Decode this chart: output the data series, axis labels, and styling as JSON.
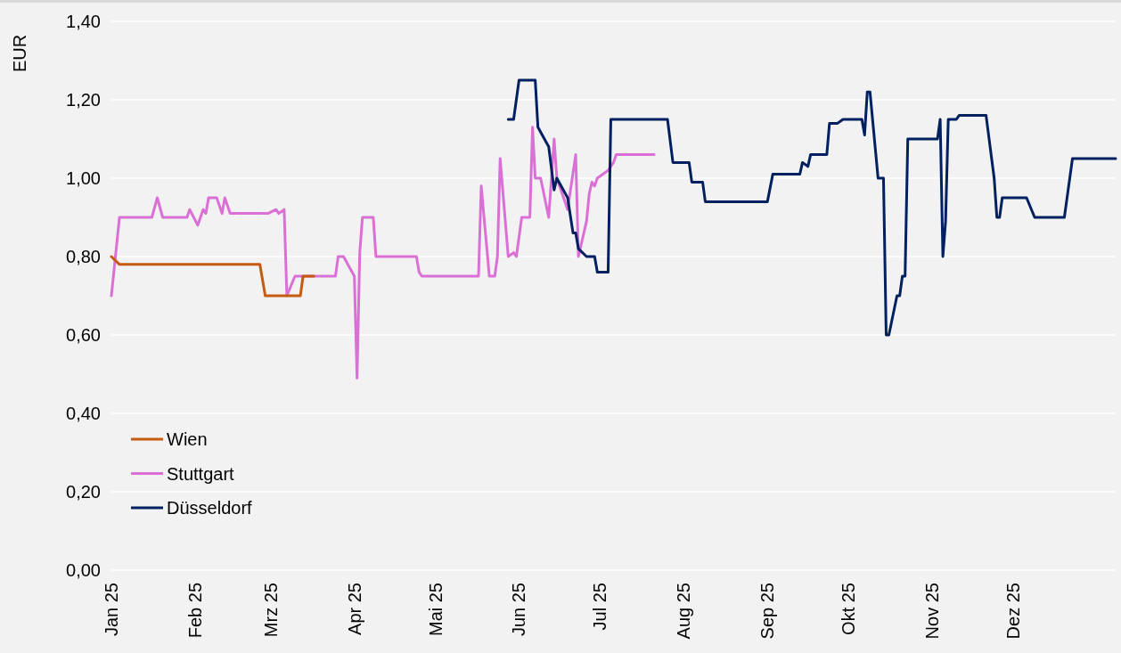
{
  "chart_data": {
    "type": "line",
    "ylabel": "EUR",
    "xlim": [
      "2025-01-01",
      "2026-01-08"
    ],
    "xticks": [
      {
        "value": "2025-01-01",
        "label": "Jan 25"
      },
      {
        "value": "2025-02-01",
        "label": "Feb 25"
      },
      {
        "value": "2025-03-01",
        "label": "Mrz 25"
      },
      {
        "value": "2025-04-01",
        "label": "Apr 25"
      },
      {
        "value": "2025-05-01",
        "label": "Mai 25"
      },
      {
        "value": "2025-06-01",
        "label": "Jun 25"
      },
      {
        "value": "2025-07-01",
        "label": "Jul 25"
      },
      {
        "value": "2025-08-01",
        "label": "Aug 25"
      },
      {
        "value": "2025-09-01",
        "label": "Sep 25"
      },
      {
        "value": "2025-10-01",
        "label": "Okt 25"
      },
      {
        "value": "2025-11-01",
        "label": "Nov 25"
      },
      {
        "value": "2025-12-01",
        "label": "Dez 25"
      }
    ],
    "ylim": [
      0,
      1.4
    ],
    "yticks": [
      {
        "value": 0,
        "label": "0,00"
      },
      {
        "value": 0.2,
        "label": "0,20"
      },
      {
        "value": 0.4,
        "label": "0,40"
      },
      {
        "value": 0.6,
        "label": "0,60"
      },
      {
        "value": 0.8,
        "label": "0,80"
      },
      {
        "value": 1.0,
        "label": "1,00"
      },
      {
        "value": 1.2,
        "label": "1,20"
      },
      {
        "value": 1.4,
        "label": "1,40"
      }
    ],
    "grid": "y",
    "legend": "bottom left",
    "marker": "none",
    "line_style": "solid",
    "series": [
      {
        "name": "Wien",
        "color": "#c55a11",
        "x": [
          "2025-01-01",
          "2025-01-04",
          "2025-02-25",
          "2025-02-27",
          "2025-03-12",
          "2025-03-13",
          "2025-03-17"
        ],
        "values": [
          0.8,
          0.78,
          0.78,
          0.7,
          0.7,
          0.75,
          0.75
        ]
      },
      {
        "name": "Stuttgart",
        "color": "#da70d6",
        "x": [
          "2025-01-01",
          "2025-01-04",
          "2025-01-16",
          "2025-01-18",
          "2025-01-20",
          "2025-01-29",
          "2025-01-30",
          "2025-02-02",
          "2025-02-04",
          "2025-02-05",
          "2025-02-06",
          "2025-02-09",
          "2025-02-11",
          "2025-02-12",
          "2025-02-14",
          "2025-02-28",
          "2025-03-03",
          "2025-03-04",
          "2025-03-06",
          "2025-03-07",
          "2025-03-10",
          "2025-03-25",
          "2025-03-26",
          "2025-03-28",
          "2025-04-01",
          "2025-04-02",
          "2025-04-03",
          "2025-04-04",
          "2025-04-08",
          "2025-04-09",
          "2025-04-24",
          "2025-04-25",
          "2025-04-26",
          "2025-05-17",
          "2025-05-18",
          "2025-05-21",
          "2025-05-23",
          "2025-05-24",
          "2025-05-25",
          "2025-05-28",
          "2025-05-30",
          "2025-05-31",
          "2025-06-02",
          "2025-06-05",
          "2025-06-06",
          "2025-06-07",
          "2025-06-09",
          "2025-06-12",
          "2025-06-14",
          "2025-06-15",
          "2025-06-19",
          "2025-06-22",
          "2025-06-23",
          "2025-06-26",
          "2025-06-27",
          "2025-06-28",
          "2025-06-29",
          "2025-06-30",
          "2025-07-04",
          "2025-07-06",
          "2025-07-07",
          "2025-07-21"
        ],
        "values": [
          0.7,
          0.9,
          0.9,
          0.95,
          0.9,
          0.9,
          0.92,
          0.88,
          0.92,
          0.91,
          0.95,
          0.95,
          0.91,
          0.95,
          0.91,
          0.91,
          0.92,
          0.91,
          0.92,
          0.7,
          0.75,
          0.75,
          0.8,
          0.8,
          0.75,
          0.49,
          0.81,
          0.9,
          0.9,
          0.8,
          0.8,
          0.76,
          0.75,
          0.75,
          0.98,
          0.75,
          0.75,
          0.8,
          1.05,
          0.8,
          0.81,
          0.8,
          0.9,
          0.9,
          1.13,
          1.0,
          1.0,
          0.9,
          1.1,
          1.0,
          0.92,
          1.06,
          0.8,
          0.89,
          0.96,
          0.99,
          0.98,
          1.0,
          1.02,
          1.04,
          1.06,
          1.06
        ]
      },
      {
        "name": "Düsseldorf",
        "color": "#002060",
        "x": [
          "2025-05-28",
          "2025-05-30",
          "2025-06-01",
          "2025-06-07",
          "2025-06-08",
          "2025-06-12",
          "2025-06-14",
          "2025-06-15",
          "2025-06-19",
          "2025-06-21",
          "2025-06-22",
          "2025-06-23",
          "2025-06-26",
          "2025-06-29",
          "2025-06-30",
          "2025-07-04",
          "2025-07-05",
          "2025-07-26",
          "2025-07-28",
          "2025-08-03",
          "2025-08-04",
          "2025-08-08",
          "2025-08-09",
          "2025-09-01",
          "2025-09-03",
          "2025-09-13",
          "2025-09-14",
          "2025-09-16",
          "2025-09-17",
          "2025-09-23",
          "2025-09-24",
          "2025-09-27",
          "2025-09-29",
          "2025-10-06",
          "2025-10-07",
          "2025-10-08",
          "2025-10-09",
          "2025-10-12",
          "2025-10-14",
          "2025-10-15",
          "2025-10-16",
          "2025-10-19",
          "2025-10-20",
          "2025-10-21",
          "2025-10-22",
          "2025-10-23",
          "2025-11-03",
          "2025-11-04",
          "2025-11-05",
          "2025-11-06",
          "2025-11-07",
          "2025-11-10",
          "2025-11-11",
          "2025-11-21",
          "2025-11-24",
          "2025-11-25",
          "2025-11-26",
          "2025-11-27",
          "2025-12-02",
          "2025-12-06",
          "2025-12-09",
          "2025-12-20",
          "2025-12-23",
          "2026-01-08"
        ],
        "values": [
          1.15,
          1.15,
          1.25,
          1.25,
          1.13,
          1.08,
          0.97,
          1.0,
          0.95,
          0.86,
          0.86,
          0.82,
          0.8,
          0.8,
          0.76,
          0.76,
          1.15,
          1.15,
          1.04,
          1.04,
          0.99,
          0.99,
          0.94,
          0.94,
          1.01,
          1.01,
          1.04,
          1.03,
          1.06,
          1.06,
          1.14,
          1.14,
          1.15,
          1.15,
          1.11,
          1.22,
          1.22,
          1.0,
          1.0,
          0.6,
          0.6,
          0.7,
          0.7,
          0.75,
          0.75,
          1.1,
          1.1,
          1.15,
          0.8,
          0.89,
          1.15,
          1.15,
          1.16,
          1.16,
          1.0,
          0.9,
          0.9,
          0.95,
          0.95,
          0.95,
          0.9,
          0.9,
          1.05,
          1.05
        ]
      }
    ]
  }
}
